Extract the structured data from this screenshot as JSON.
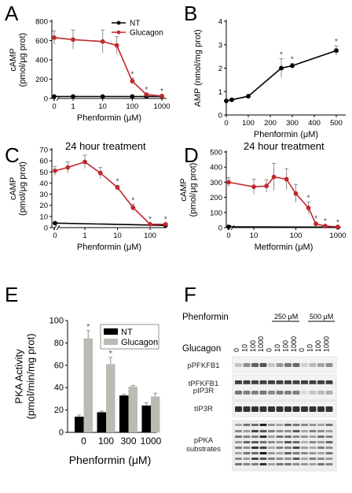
{
  "panel_labels": [
    "A",
    "B",
    "C",
    "D",
    "E",
    "F"
  ],
  "colors": {
    "glucagon_line": "#c0282d",
    "nt_line": "#000000",
    "nt_bar": "#000000",
    "glucagon_bar": "#b9bcb3",
    "error_bar": "#8e8e8e"
  },
  "chart_data": [
    {
      "panel": "A",
      "type": "line",
      "xlabel": "Phenformin (μM)",
      "ylabel": [
        "cAMP",
        "(pmol/μg prot)"
      ],
      "x_scale": "log with break (0 plotted at left)",
      "x_ticks": [
        "0",
        "1",
        "10",
        "100",
        "1000"
      ],
      "y_ticks": [
        "0",
        "200",
        "400",
        "600",
        "800"
      ],
      "ylim": [
        0,
        800
      ],
      "legend": [
        "NT",
        "Glucagon"
      ],
      "legend_position": "top-right",
      "series": [
        {
          "name": "NT",
          "x": [
            0,
            1,
            10,
            100,
            300,
            1000
          ],
          "y": [
            20,
            20,
            20,
            20,
            20,
            20
          ]
        },
        {
          "name": "Glucagon",
          "x": [
            0,
            1,
            10,
            30,
            100,
            300,
            1000
          ],
          "y": [
            630,
            610,
            590,
            550,
            180,
            40,
            25
          ],
          "err": [
            70,
            100,
            120,
            90,
            30,
            10,
            8
          ]
        }
      ],
      "significance": [
        {
          "x": 100,
          "mark": "*"
        },
        {
          "x": 300,
          "mark": "*"
        },
        {
          "x": 1000,
          "mark": "*"
        }
      ]
    },
    {
      "panel": "B",
      "type": "line",
      "xlabel": "Phenformin (μM)",
      "ylabel": [
        "AMP (nmol/mg prot)"
      ],
      "x_ticks": [
        "0",
        "100",
        "200",
        "300",
        "400",
        "500"
      ],
      "y_ticks": [
        "0",
        "1",
        "2",
        "3",
        "4"
      ],
      "xlim": [
        0,
        500
      ],
      "ylim": [
        0,
        4
      ],
      "series": [
        {
          "name": "",
          "x": [
            0,
            25,
            100,
            250,
            300,
            500
          ],
          "y": [
            0.6,
            0.65,
            0.8,
            2.0,
            2.1,
            2.75
          ],
          "err": [
            0.05,
            0.05,
            0.05,
            0.4,
            0.1,
            0.2
          ]
        }
      ],
      "significance": [
        {
          "x": 250,
          "mark": "*"
        },
        {
          "x": 300,
          "mark": "*"
        },
        {
          "x": 500,
          "mark": "*"
        }
      ]
    },
    {
      "panel": "C",
      "type": "line",
      "title": "24 hour treatment",
      "xlabel": "Phenformin (μM)",
      "ylabel": [
        "cAMP",
        "(pmol/μg prot)"
      ],
      "x_ticks": [
        "0",
        "1",
        "10",
        "100"
      ],
      "y_ticks": [
        "0",
        "10",
        "20",
        "30",
        "40",
        "50",
        "60",
        "70"
      ],
      "ylim": [
        0,
        70
      ],
      "series": [
        {
          "name": "NT",
          "x": [
            0,
            300
          ],
          "y": [
            4,
            2
          ]
        },
        {
          "name": "Glucagon",
          "x": [
            0,
            0.3,
            1,
            3,
            10,
            30,
            100,
            300
          ],
          "y": [
            51,
            54,
            59,
            49,
            36,
            18,
            3,
            3
          ],
          "err": [
            4,
            5,
            6,
            5,
            2,
            3,
            1,
            1
          ]
        }
      ],
      "significance": [
        {
          "x": 10,
          "mark": "*"
        },
        {
          "x": 30,
          "mark": "*"
        },
        {
          "x": 100,
          "mark": "*"
        },
        {
          "x": 300,
          "mark": "*"
        }
      ]
    },
    {
      "panel": "D",
      "type": "line",
      "title": "24 hour treatment",
      "xlabel": "Metformin (μM)",
      "ylabel": [
        "cAMP",
        "(pmol/μg prot)"
      ],
      "x_ticks": [
        "0",
        "10",
        "100",
        "1000"
      ],
      "y_ticks": [
        "0",
        "100",
        "200",
        "300",
        "400",
        "500"
      ],
      "ylim": [
        0,
        500
      ],
      "series": [
        {
          "name": "NT",
          "x": [
            0,
            1000
          ],
          "y": [
            5,
            3
          ]
        },
        {
          "name": "Glucagon",
          "x": [
            0,
            10,
            20,
            30,
            60,
            100,
            200,
            300,
            500,
            1000
          ],
          "y": [
            300,
            270,
            275,
            335,
            320,
            225,
            130,
            25,
            10,
            5
          ],
          "err": [
            30,
            50,
            40,
            90,
            70,
            60,
            40,
            10,
            5,
            3
          ]
        }
      ],
      "significance": [
        {
          "x": 200,
          "mark": "*"
        },
        {
          "x": 300,
          "mark": "*"
        },
        {
          "x": 500,
          "mark": "*"
        },
        {
          "x": 1000,
          "mark": "*"
        }
      ]
    },
    {
      "panel": "E",
      "type": "bar",
      "xlabel": "Phenformin (μM)",
      "ylabel": [
        "PKA Activity",
        "(pmol/min/mg prot)"
      ],
      "categories": [
        "0",
        "100",
        "300",
        "1000"
      ],
      "y_ticks": [
        "0",
        "20",
        "40",
        "60",
        "80",
        "100"
      ],
      "ylim": [
        0,
        100
      ],
      "legend": [
        "NT",
        "Glucagon"
      ],
      "legend_position": "top-right",
      "series": [
        {
          "name": "NT",
          "values": [
            14,
            18,
            33,
            24
          ],
          "err": [
            1.5,
            1,
            1,
            2.5
          ]
        },
        {
          "name": "Glucagon",
          "values": [
            84,
            61,
            41,
            32
          ],
          "err": [
            7,
            6,
            1,
            3
          ]
        }
      ],
      "significance": [
        {
          "category": "0",
          "mark": "*"
        },
        {
          "category": "100",
          "mark": "*"
        }
      ]
    }
  ],
  "panel_f": {
    "phenformin_label": "Phenformin",
    "dose_labels": [
      "250 μM",
      "500 μM"
    ],
    "glucagon_label": "Glucagon",
    "lane_labels": [
      "0",
      "10",
      "100",
      "1000",
      "0",
      "10",
      "100",
      "1000",
      "0",
      "10",
      "100",
      "1000"
    ],
    "blots": [
      "pPFKFB1",
      "tPFKFB1",
      "pIP3R",
      "tIP3R",
      "pPKA substrates"
    ]
  }
}
